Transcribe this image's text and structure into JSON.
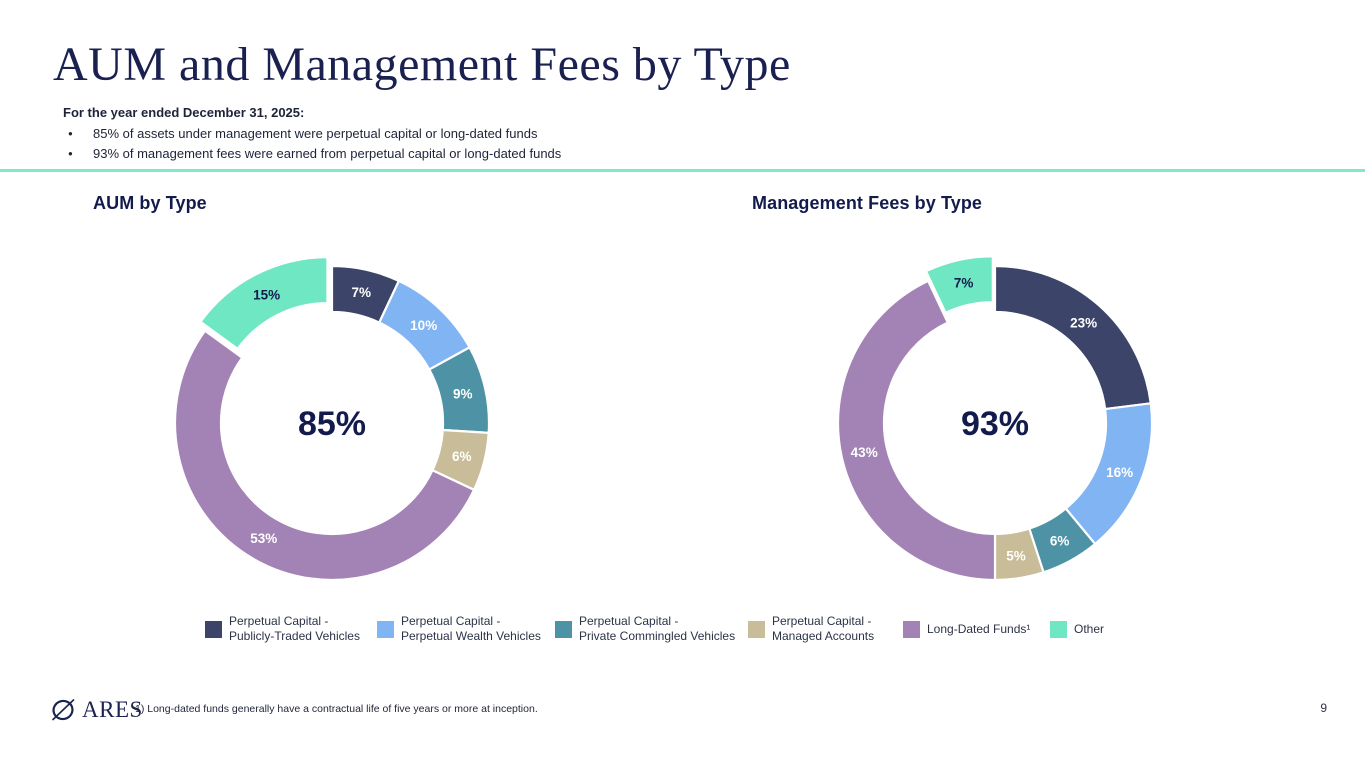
{
  "slide": {
    "title": "AUM and Management Fees by Type",
    "subtitle": "For the year ended December 31, 2025:",
    "bullets": [
      "85% of assets under management were perpetual capital or long-dated funds",
      "93% of management fees were earned from perpetual capital or long-dated funds"
    ],
    "footnote": "1)  Long-dated funds generally have a contractual life of five years or more at inception.",
    "logo_text": "ARES",
    "page_number": "9"
  },
  "colors": {
    "navy": "#3c4569",
    "light_blue": "#80b4f2",
    "teal": "#4e92a6",
    "tan": "#c9bc98",
    "purple": "#a383b5",
    "mint": "#6fe7c3",
    "divider_mint": "#7fe9cc",
    "dark_text": "#131b4d"
  },
  "legend": {
    "items": [
      {
        "lines": [
          "Perpetual Capital -",
          "Publicly-Traded Vehicles"
        ],
        "color": "#3c4569"
      },
      {
        "lines": [
          "Perpetual Capital -",
          "Perpetual Wealth Vehicles"
        ],
        "color": "#80b4f2"
      },
      {
        "lines": [
          "Perpetual Capital -",
          "Private Commingled Vehicles"
        ],
        "color": "#4e92a6"
      },
      {
        "lines": [
          "Perpetual Capital -",
          "Managed Accounts"
        ],
        "color": "#c9bc98"
      },
      {
        "lines": [
          "Long-Dated Funds¹"
        ],
        "color": "#a383b5"
      },
      {
        "lines": [
          "Other"
        ],
        "color": "#6fe7c3"
      }
    ]
  },
  "chart_data": [
    {
      "type": "pie",
      "subtype": "donut",
      "title": "AUM by Type",
      "center_label": "85%",
      "legend_position": "bottom",
      "segments": [
        {
          "name": "Perpetual Capital - Publicly-Traded Vehicles",
          "value": 7,
          "display": "7%",
          "color": "#3c4569",
          "label_color": "#ffffff",
          "exploded": false
        },
        {
          "name": "Perpetual Capital - Perpetual Wealth Vehicles",
          "value": 10,
          "display": "10%",
          "color": "#80b4f2",
          "label_color": "#ffffff",
          "exploded": false
        },
        {
          "name": "Perpetual Capital - Private Commingled Vehicles",
          "value": 9,
          "display": "9%",
          "color": "#4e92a6",
          "label_color": "#ffffff",
          "exploded": false
        },
        {
          "name": "Perpetual Capital - Managed Accounts",
          "value": 6,
          "display": "6%",
          "color": "#c9bc98",
          "label_color": "#ffffff",
          "exploded": false
        },
        {
          "name": "Long-Dated Funds",
          "value": 53,
          "display": "53%",
          "color": "#a383b5",
          "label_color": "#ffffff",
          "exploded": false
        },
        {
          "name": "Other",
          "value": 15,
          "display": "15%",
          "color": "#6fe7c3",
          "label_color": "#131b4d",
          "exploded": true
        }
      ]
    },
    {
      "type": "pie",
      "subtype": "donut",
      "title": "Management Fees by Type",
      "center_label": "93%",
      "legend_position": "bottom",
      "segments": [
        {
          "name": "Perpetual Capital - Publicly-Traded Vehicles",
          "value": 23,
          "display": "23%",
          "color": "#3c4569",
          "label_color": "#ffffff",
          "exploded": false
        },
        {
          "name": "Perpetual Capital - Perpetual Wealth Vehicles",
          "value": 16,
          "display": "16%",
          "color": "#80b4f2",
          "label_color": "#ffffff",
          "exploded": false
        },
        {
          "name": "Perpetual Capital - Private Commingled Vehicles",
          "value": 6,
          "display": "6%",
          "color": "#4e92a6",
          "label_color": "#ffffff",
          "exploded": false
        },
        {
          "name": "Perpetual Capital - Managed Accounts",
          "value": 5,
          "display": "5%",
          "color": "#c9bc98",
          "label_color": "#ffffff",
          "exploded": false
        },
        {
          "name": "Long-Dated Funds",
          "value": 43,
          "display": "43%",
          "color": "#a383b5",
          "label_color": "#ffffff",
          "exploded": false
        },
        {
          "name": "Other",
          "value": 7,
          "display": "7%",
          "color": "#6fe7c3",
          "label_color": "#131b4d",
          "exploded": true
        }
      ]
    }
  ]
}
